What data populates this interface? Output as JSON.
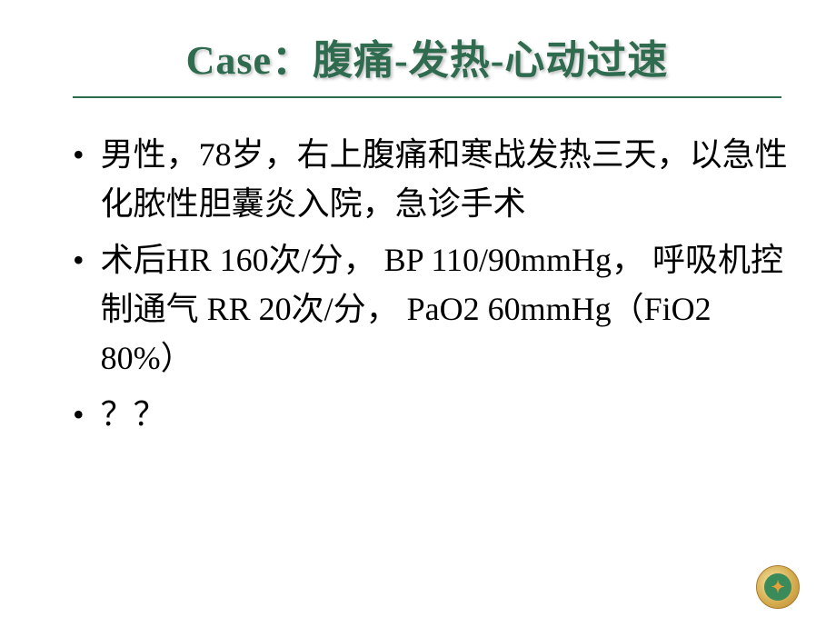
{
  "slide": {
    "title": "Case：腹痛-发热-心动过速",
    "title_color": "#2e6b4f",
    "title_fontsize": 44,
    "divider_color": "#2e6b4f",
    "background_color": "#ffffff",
    "text_color": "#000000",
    "bullets": [
      {
        "text": "男性，78岁，右上腹痛和寒战发热三天，以急性化脓性胆囊炎入院，急诊手术"
      },
      {
        "text": "术后HR 160次/分， BP 110/90mmHg， 呼吸机控制通气 RR 20次/分， PaO2 60mmHg（FiO2 80%）"
      },
      {
        "text": "？？"
      }
    ],
    "bullet_fontsize": 36
  },
  "logo": {
    "outer_color": "#d4a94a",
    "inner_color": "#3a8a5a",
    "symbol_color": "#e8a03a"
  }
}
